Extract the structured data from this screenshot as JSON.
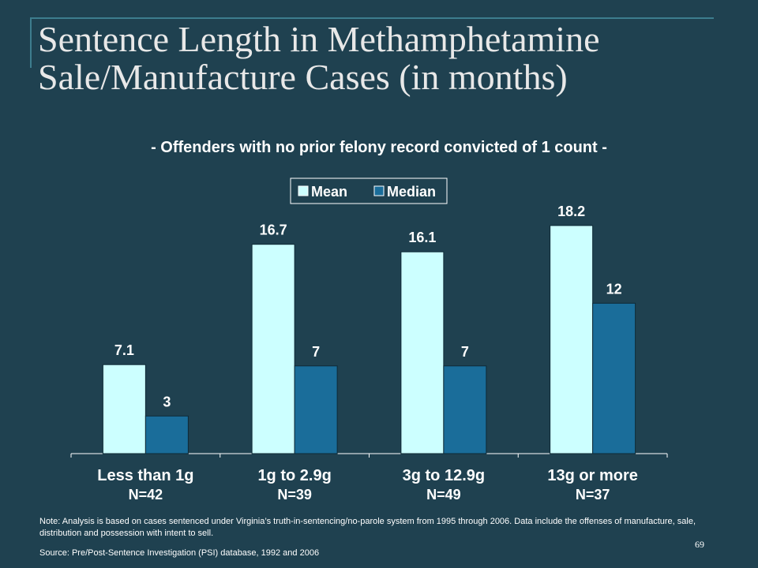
{
  "slide": {
    "title": "Sentence Length in Methamphetamine Sale/Manufacture Cases (in months)",
    "subtitle": "- Offenders with no prior felony record convicted of 1 count -",
    "note": "Note:  Analysis is based on cases sentenced under Virginia’s truth-in-sentencing/no-parole system from 1995 through 2006.  Data include the offenses of manufacture, sale, distribution and possession with intent to sell.",
    "source": "Source:  Pre/Post-Sentence Investigation (PSI) database, 1992 and 2006",
    "page_number": "69"
  },
  "chart_data": {
    "type": "bar",
    "categories": [
      "Less than 1g",
      "1g to 2.9g",
      "3g to 12.9g",
      "13g or more"
    ],
    "category_counts": [
      "N=42",
      "N=39",
      "N=49",
      "N=37"
    ],
    "series": [
      {
        "name": "Mean",
        "values": [
          7.1,
          16.7,
          16.1,
          18.2
        ],
        "labels": [
          "7.1",
          "16.7",
          "16.1",
          "18.2"
        ],
        "color": "#ccffff"
      },
      {
        "name": "Median",
        "values": [
          3,
          7,
          7,
          12
        ],
        "labels": [
          "3",
          "7",
          "7",
          "12"
        ],
        "color": "#1a6d9a"
      }
    ],
    "ylim": [
      0,
      19.2
    ],
    "grid": false,
    "legend_position": "top-center"
  }
}
